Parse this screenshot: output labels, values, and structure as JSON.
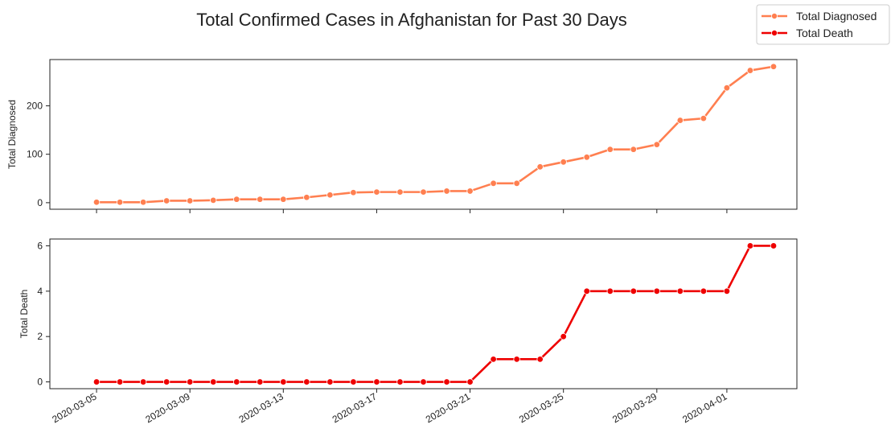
{
  "title": "Total Confirmed Cases in Afghanistan for Past 30 Days",
  "colors": {
    "diagnosed": "#FF7F50",
    "death": "#EE0000",
    "axis": "#222222",
    "legend_border": "#CCCCCC"
  },
  "chart_data": [
    {
      "type": "line",
      "series": [
        {
          "name": "Total Diagnosed",
          "x": [
            "2020-03-05",
            "2020-03-06",
            "2020-03-07",
            "2020-03-08",
            "2020-03-09",
            "2020-03-10",
            "2020-03-11",
            "2020-03-12",
            "2020-03-13",
            "2020-03-14",
            "2020-03-15",
            "2020-03-16",
            "2020-03-17",
            "2020-03-18",
            "2020-03-19",
            "2020-03-20",
            "2020-03-21",
            "2020-03-22",
            "2020-03-23",
            "2020-03-24",
            "2020-03-25",
            "2020-03-26",
            "2020-03-27",
            "2020-03-28",
            "2020-03-29",
            "2020-03-30",
            "2020-03-31",
            "2020-04-01",
            "2020-04-02",
            "2020-04-03"
          ],
          "values": [
            1,
            1,
            1,
            4,
            4,
            5,
            7,
            7,
            7,
            11,
            16,
            21,
            22,
            22,
            22,
            24,
            24,
            40,
            40,
            74,
            84,
            94,
            110,
            110,
            120,
            170,
            174,
            237,
            273,
            281
          ]
        }
      ],
      "xlabel": "",
      "ylabel": "Total Diagnosed",
      "yticks": [
        0,
        100,
        200
      ],
      "ylim": [
        -13.5,
        295.5
      ],
      "xlim": [
        "2020-03-03",
        "2020-04-04"
      ],
      "grid": false
    },
    {
      "type": "line",
      "series": [
        {
          "name": "Total Death",
          "x": [
            "2020-03-05",
            "2020-03-06",
            "2020-03-07",
            "2020-03-08",
            "2020-03-09",
            "2020-03-10",
            "2020-03-11",
            "2020-03-12",
            "2020-03-13",
            "2020-03-14",
            "2020-03-15",
            "2020-03-16",
            "2020-03-17",
            "2020-03-18",
            "2020-03-19",
            "2020-03-20",
            "2020-03-21",
            "2020-03-22",
            "2020-03-23",
            "2020-03-24",
            "2020-03-25",
            "2020-03-26",
            "2020-03-27",
            "2020-03-28",
            "2020-03-29",
            "2020-03-30",
            "2020-03-31",
            "2020-04-01",
            "2020-04-02",
            "2020-04-03"
          ],
          "values": [
            0,
            0,
            0,
            0,
            0,
            0,
            0,
            0,
            0,
            0,
            0,
            0,
            0,
            0,
            0,
            0,
            0,
            1,
            1,
            1,
            2,
            4,
            4,
            4,
            4,
            4,
            4,
            4,
            6,
            6
          ]
        }
      ],
      "xlabel": "",
      "ylabel": "Total Death",
      "yticks": [
        0,
        2,
        4,
        6
      ],
      "ylim": [
        -0.3,
        6.3
      ],
      "xlim": [
        "2020-03-03",
        "2020-04-04"
      ],
      "xticks": [
        "2020-03-05",
        "2020-03-09",
        "2020-03-13",
        "2020-03-17",
        "2020-03-21",
        "2020-03-25",
        "2020-03-29",
        "2020-04-01"
      ],
      "grid": false
    }
  ],
  "legend": {
    "placement": "top-right",
    "entries": [
      "Total Diagnosed",
      "Total Death"
    ]
  }
}
